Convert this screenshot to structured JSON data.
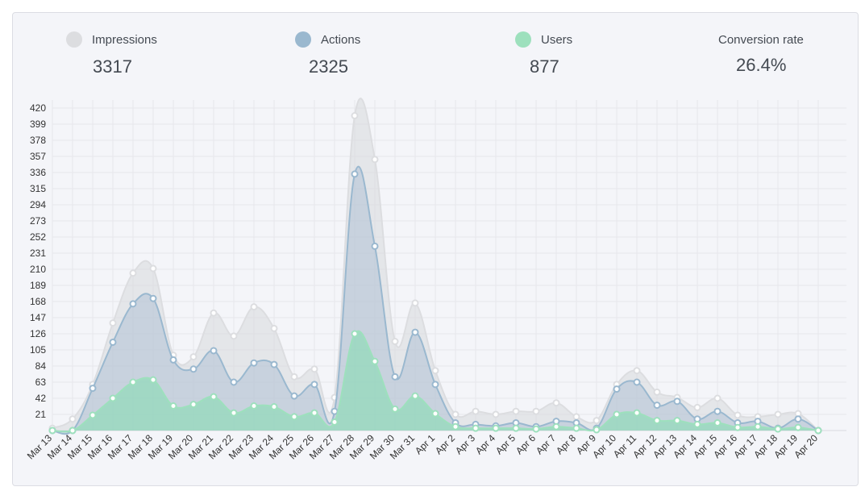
{
  "summary": {
    "impressions": {
      "label": "Impressions",
      "value": "3317",
      "color": "#dcdde0"
    },
    "actions": {
      "label": "Actions",
      "value": "2325",
      "color": "#9ab8cf"
    },
    "users": {
      "label": "Users",
      "value": "877",
      "color": "#9de0bd"
    },
    "conversion": {
      "label": "Conversion rate",
      "value": "26.4%"
    }
  },
  "chart_data": {
    "type": "area",
    "categories": [
      "Mar 13",
      "Mar 14",
      "Mar 15",
      "Mar 16",
      "Mar 17",
      "Mar 18",
      "Mar 19",
      "Mar 20",
      "Mar 21",
      "Mar 22",
      "Mar 23",
      "Mar 24",
      "Mar 25",
      "Mar 26",
      "Mar 27",
      "Mar 28",
      "Mar 29",
      "Mar 30",
      "Mar 31",
      "Apr 1",
      "Apr 2",
      "Apr 3",
      "Apr 4",
      "Apr 5",
      "Apr 6",
      "Apr 7",
      "Apr 8",
      "Apr 9",
      "Apr 10",
      "Apr 11",
      "Apr 12",
      "Apr 13",
      "Apr 14",
      "Apr 15",
      "Apr 16",
      "Apr 17",
      "Apr 18",
      "Apr 19",
      "Apr 20"
    ],
    "yticks": [
      21,
      42,
      63,
      84,
      105,
      126,
      147,
      168,
      189,
      210,
      231,
      252,
      273,
      294,
      315,
      336,
      357,
      378,
      399,
      420
    ],
    "ylim": [
      0,
      420
    ],
    "grid": true,
    "series": [
      {
        "name": "Impressions",
        "color": "#dcdde0",
        "values": [
          3,
          15,
          60,
          140,
          205,
          211,
          98,
          96,
          153,
          123,
          161,
          133,
          70,
          80,
          43,
          410,
          353,
          116,
          166,
          78,
          21,
          25,
          21,
          25,
          25,
          36,
          18,
          13,
          60,
          78,
          50,
          43,
          30,
          42,
          20,
          18,
          21,
          22,
          0
        ]
      },
      {
        "name": "Actions",
        "color": "#9ab8cf",
        "values": [
          0,
          0,
          55,
          115,
          165,
          172,
          92,
          80,
          104,
          63,
          88,
          86,
          45,
          60,
          25,
          334,
          240,
          70,
          128,
          60,
          10,
          8,
          6,
          10,
          5,
          12,
          10,
          3,
          54,
          63,
          33,
          38,
          15,
          25,
          10,
          12,
          3,
          15,
          0
        ]
      },
      {
        "name": "Users",
        "color": "#9de0bd",
        "values": [
          0,
          0,
          20,
          42,
          63,
          66,
          32,
          34,
          44,
          23,
          32,
          31,
          18,
          23,
          11,
          126,
          90,
          28,
          45,
          22,
          5,
          3,
          3,
          3,
          2,
          5,
          3,
          1,
          21,
          23,
          13,
          13,
          8,
          10,
          4,
          5,
          2,
          4,
          0
        ]
      }
    ]
  }
}
